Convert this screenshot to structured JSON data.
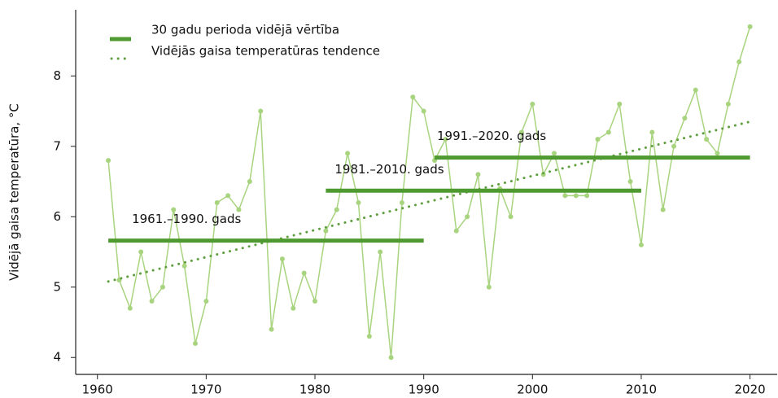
{
  "chart_data": {
    "type": "line",
    "y_label": "Vidējā gaisa temperatūra, °C",
    "x": [
      1961,
      1962,
      1963,
      1964,
      1965,
      1966,
      1967,
      1968,
      1969,
      1970,
      1971,
      1972,
      1973,
      1974,
      1975,
      1976,
      1977,
      1978,
      1979,
      1980,
      1981,
      1982,
      1983,
      1984,
      1985,
      1986,
      1987,
      1988,
      1989,
      1990,
      1991,
      1992,
      1993,
      1994,
      1995,
      1996,
      1997,
      1998,
      1999,
      2000,
      2001,
      2002,
      2003,
      2004,
      2005,
      2006,
      2007,
      2008,
      2009,
      2010,
      2011,
      2012,
      2013,
      2014,
      2015,
      2016,
      2017,
      2018,
      2019,
      2020
    ],
    "xlim": [
      1958,
      2022.5
    ],
    "xticks": [
      1960,
      1970,
      1980,
      1990,
      2000,
      2010,
      2020
    ],
    "ylim": [
      3.76,
      8.94
    ],
    "yticks": [
      4,
      5,
      6,
      7,
      8
    ],
    "series": [
      {
        "color": "#a9d47f",
        "values": [
          6.8,
          5.1,
          4.7,
          5.5,
          4.8,
          5.0,
          6.1,
          5.3,
          4.2,
          4.8,
          6.2,
          6.3,
          6.1,
          6.5,
          7.5,
          4.4,
          5.4,
          4.7,
          5.2,
          4.8,
          5.8,
          6.1,
          6.9,
          6.2,
          4.3,
          5.5,
          4.0,
          6.2,
          7.7,
          7.5,
          6.8,
          7.1,
          5.8,
          6.0,
          6.6,
          5.0,
          6.4,
          6.0,
          7.2,
          7.6,
          6.6,
          6.9,
          6.3,
          6.3,
          6.3,
          7.1,
          7.2,
          7.6,
          6.5,
          5.6,
          7.2,
          6.1,
          7.0,
          7.4,
          7.8,
          7.1,
          6.9,
          7.6,
          8.2,
          8.7
        ]
      }
    ],
    "period_means": {
      "name": "30 gadu perioda vidējā vērtība",
      "color": "#4f9a30",
      "periods": [
        {
          "label": "1961.–1990. gads",
          "x": [
            1961,
            1990
          ],
          "value": 5.66
        },
        {
          "label": "1981.–2010. gads",
          "x": [
            1981,
            2010
          ],
          "value": 6.37
        },
        {
          "label": "1991.–2020. gads",
          "x": [
            1991,
            2020
          ],
          "value": 6.84
        }
      ]
    },
    "trend": {
      "name": "Vidējās gaisa temperatūras tendence",
      "color": "#5e9e3e",
      "x": [
        1961,
        2020
      ],
      "values": [
        5.08,
        7.35
      ]
    }
  }
}
